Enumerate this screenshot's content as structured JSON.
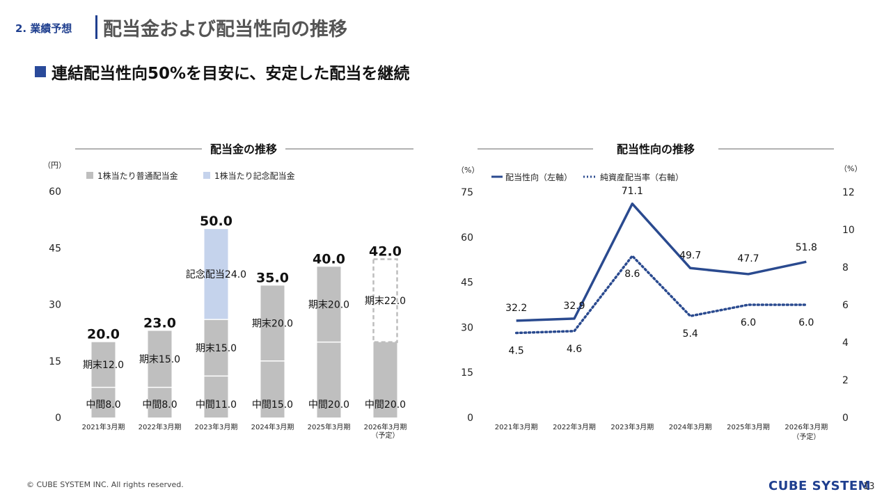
{
  "header": {
    "section": "2. 業績予想",
    "title": "配当金および配当性向の推移",
    "subtitle": "連結配当性向50%を目安に、安定した配当を継続"
  },
  "footer": {
    "copyright": "© CUBE SYSTEM INC. All rights reserved.",
    "logo": "CUBE SYSTEM",
    "page": "13"
  },
  "colors": {
    "accent": "#1f3f8f",
    "ordinary": "#bfbfbf",
    "commemorative": "#c5d3ec",
    "line": "#2a4a8f"
  },
  "chart_data": [
    {
      "type": "bar",
      "title": "配当金の推移",
      "unit_label": "（円）",
      "ylim": [
        0,
        60
      ],
      "yticks": [
        "0",
        "15",
        "30",
        "45",
        "60"
      ],
      "legend": [
        "1株当たり普通配当金",
        "1株当たり記念配当金"
      ],
      "categories": [
        "2021年3月期",
        "2022年3月期",
        "2023年3月期",
        "2024年3月期",
        "2025年3月期",
        "2026年3月期"
      ],
      "category_notes": [
        "",
        "",
        "",
        "",
        "",
        "（予定）"
      ],
      "totals": [
        "20.0",
        "23.0",
        "50.0",
        "35.0",
        "40.0",
        "42.0"
      ],
      "segments": [
        [
          {
            "kind": "ordinary",
            "value": 8,
            "label": "中間8.0"
          },
          {
            "kind": "ordinary",
            "value": 12,
            "label": "期末12.0"
          }
        ],
        [
          {
            "kind": "ordinary",
            "value": 8,
            "label": "中間8.0"
          },
          {
            "kind": "ordinary",
            "value": 15,
            "label": "期末15.0"
          }
        ],
        [
          {
            "kind": "ordinary",
            "value": 11,
            "label": "中間11.0"
          },
          {
            "kind": "ordinary",
            "value": 15,
            "label": "期末15.0"
          },
          {
            "kind": "commemorative",
            "value": 24,
            "label": "記念配当24.0"
          }
        ],
        [
          {
            "kind": "ordinary",
            "value": 15,
            "label": "中間15.0"
          },
          {
            "kind": "ordinary",
            "value": 20,
            "label": "期末20.0"
          }
        ],
        [
          {
            "kind": "ordinary",
            "value": 20,
            "label": "中間20.0"
          },
          {
            "kind": "ordinary",
            "value": 20,
            "label": "期末20.0"
          }
        ],
        [
          {
            "kind": "ordinary",
            "value": 20,
            "label": "中間20.0"
          },
          {
            "kind": "forecast",
            "value": 22,
            "label": "期末22.0"
          }
        ]
      ]
    },
    {
      "type": "line",
      "title": "配当性向の推移",
      "left_unit": "（%）",
      "right_unit": "（%）",
      "left_ylim": [
        0,
        75
      ],
      "left_yticks": [
        "0",
        "15",
        "30",
        "45",
        "60",
        "75"
      ],
      "right_ylim": [
        0,
        12
      ],
      "right_yticks": [
        "0",
        "2",
        "4",
        "6",
        "8",
        "10",
        "12"
      ],
      "categories": [
        "2021年3月期",
        "2022年3月期",
        "2023年3月期",
        "2024年3月期",
        "2025年3月期",
        "2026年3月期"
      ],
      "category_notes": [
        "",
        "",
        "",
        "",
        "",
        "（予定）"
      ],
      "series": [
        {
          "name": "配当性向（左軸）",
          "axis": "left",
          "style": "solid",
          "values": [
            32.2,
            32.9,
            71.1,
            49.7,
            47.7,
            51.8
          ],
          "labels": [
            "32.2",
            "32.9",
            "71.1",
            "49.7",
            "47.7",
            "51.8"
          ]
        },
        {
          "name": "純資産配当率（右軸）",
          "axis": "right",
          "style": "dotted",
          "values": [
            4.5,
            4.6,
            8.6,
            5.4,
            6.0,
            6.0
          ],
          "labels": [
            "4.5",
            "4.6",
            "8.6",
            "5.4",
            "6.0",
            "6.0"
          ]
        }
      ]
    }
  ]
}
